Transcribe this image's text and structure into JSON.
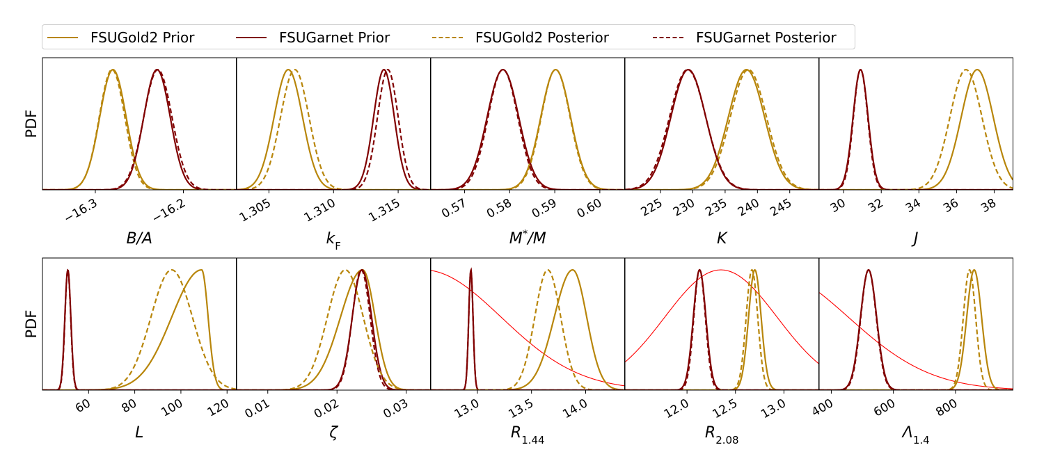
{
  "legend": {
    "items": [
      {
        "label": "FSUGold2 Prior",
        "color": "#b8860b",
        "style": "solid"
      },
      {
        "label": "FSUGarnet Prior",
        "color": "#800000",
        "style": "solid"
      },
      {
        "label": "FSUGold2 Posterior",
        "color": "#b8860b",
        "style": "dashed"
      },
      {
        "label": "FSUGarnet Posterior",
        "color": "#800000",
        "style": "dashed"
      }
    ]
  },
  "colors": {
    "gold": "#b8860b",
    "garnet": "#800000",
    "constraint": "#ff0000"
  },
  "chart_data": [
    {
      "type": "line",
      "xlabel": "B/A",
      "ylabel": "PDF",
      "xlim": [
        -16.36,
        -16.14
      ],
      "ticks": [
        {
          "v": -16.3,
          "label": "−16.3"
        },
        {
          "v": -16.2,
          "label": "−16.2"
        }
      ],
      "series": [
        {
          "name": "FSUGold2 Prior",
          "mu": -16.28,
          "sigma": 0.015
        },
        {
          "name": "FSUGarnet Prior",
          "mu": -16.23,
          "sigma": 0.015
        },
        {
          "name": "FSUGold2 Posterior",
          "mu": -16.281,
          "sigma": 0.0145
        },
        {
          "name": "FSUGarnet Posterior",
          "mu": -16.229,
          "sigma": 0.016
        }
      ]
    },
    {
      "type": "line",
      "xlabel": "k_F",
      "ylabel": "",
      "xlim": [
        1.3025,
        1.3175
      ],
      "ticks": [
        {
          "v": 1.305,
          "label": "1.305"
        },
        {
          "v": 1.31,
          "label": "1.310"
        },
        {
          "v": 1.315,
          "label": "1.315"
        }
      ],
      "series": [
        {
          "name": "FSUGold2 Prior",
          "mu": 1.3065,
          "sigma": 0.0011
        },
        {
          "name": "FSUGarnet Prior",
          "mu": 1.3139,
          "sigma": 0.0008
        },
        {
          "name": "FSUGold2 Posterior",
          "mu": 1.307,
          "sigma": 0.0011
        },
        {
          "name": "FSUGarnet Posterior",
          "mu": 1.3142,
          "sigma": 0.0008
        }
      ]
    },
    {
      "type": "line",
      "xlabel": "M*/M",
      "ylabel": "",
      "xlim": [
        0.5625,
        0.6055
      ],
      "ticks": [
        {
          "v": 0.57,
          "label": "0.57"
        },
        {
          "v": 0.58,
          "label": "0.58"
        },
        {
          "v": 0.59,
          "label": "0.59"
        },
        {
          "v": 0.6,
          "label": "0.60"
        }
      ],
      "series": [
        {
          "name": "FSUGold2 Prior",
          "mu": 0.5902,
          "sigma": 0.0033
        },
        {
          "name": "FSUGarnet Prior",
          "mu": 0.5785,
          "sigma": 0.0035
        },
        {
          "name": "FSUGold2 Posterior",
          "mu": 0.5902,
          "sigma": 0.0032
        },
        {
          "name": "FSUGarnet Posterior",
          "mu": 0.5785,
          "sigma": 0.0033
        }
      ]
    },
    {
      "type": "line",
      "xlabel": "K",
      "ylabel": "",
      "xlim": [
        219.5,
        249.5
      ],
      "ticks": [
        {
          "v": 225,
          "label": "225"
        },
        {
          "v": 230,
          "label": "230"
        },
        {
          "v": 235,
          "label": "235"
        },
        {
          "v": 240,
          "label": "240"
        },
        {
          "v": 245,
          "label": "245"
        }
      ],
      "series": [
        {
          "name": "FSUGold2 Prior",
          "mu": 238.3,
          "sigma": 2.8
        },
        {
          "name": "FSUGarnet Prior",
          "mu": 229.3,
          "sigma": 2.7
        },
        {
          "name": "FSUGold2 Posterior",
          "mu": 238.6,
          "sigma": 2.8
        },
        {
          "name": "FSUGarnet Posterior",
          "mu": 229.2,
          "sigma": 2.8
        }
      ]
    },
    {
      "type": "line",
      "xlabel": "J",
      "ylabel": "",
      "xlim": [
        28.7,
        39.0
      ],
      "ticks": [
        {
          "v": 30,
          "label": "30"
        },
        {
          "v": 32,
          "label": "32"
        },
        {
          "v": 34,
          "label": "34"
        },
        {
          "v": 36,
          "label": "36"
        },
        {
          "v": 38,
          "label": "38"
        }
      ],
      "series": [
        {
          "name": "FSUGold2 Prior",
          "mu": 37.1,
          "sigma": 0.85
        },
        {
          "name": "FSUGarnet Prior",
          "mu": 30.9,
          "sigma": 0.4
        },
        {
          "name": "FSUGold2 Posterior",
          "mu": 36.5,
          "sigma": 0.85
        },
        {
          "name": "FSUGarnet Posterior",
          "mu": 30.9,
          "sigma": 0.38
        }
      ]
    },
    {
      "type": "line",
      "xlabel": "L",
      "ylabel": "PDF",
      "xlim": [
        40.0,
        124.0
      ],
      "ticks": [
        {
          "v": 60,
          "label": "60"
        },
        {
          "v": 80,
          "label": "80"
        },
        {
          "v": 100,
          "label": "100"
        },
        {
          "v": 120,
          "label": "120"
        }
      ],
      "series": [
        {
          "name": "FSUGold2 Prior",
          "mu": 109.0,
          "sigma": 2.8,
          "sigmaLeft": 13.0
        },
        {
          "name": "FSUGarnet Prior",
          "mu": 51.0,
          "sigma": 1.3
        },
        {
          "name": "FSUGold2 Posterior",
          "mu": 96.0,
          "sigma": 9.0
        },
        {
          "name": "FSUGarnet Posterior",
          "mu": 51.0,
          "sigma": 1.25
        }
      ]
    },
    {
      "type": "line",
      "xlabel": "ζ",
      "ylabel": "",
      "xlim": [
        0.0055,
        0.0335
      ],
      "ticks": [
        {
          "v": 0.01,
          "label": "0.01"
        },
        {
          "v": 0.02,
          "label": "0.02"
        },
        {
          "v": 0.03,
          "label": "0.03"
        }
      ],
      "series": [
        {
          "name": "FSUGold2 Prior",
          "mu": 0.0237,
          "sigma": 0.0018,
          "sigmaLeft": 0.0032
        },
        {
          "name": "FSUGarnet Prior",
          "mu": 0.0236,
          "sigma": 0.0014
        },
        {
          "name": "FSUGold2 Posterior",
          "mu": 0.0212,
          "sigma": 0.0026
        },
        {
          "name": "FSUGarnet Posterior",
          "mu": 0.0235,
          "sigma": 0.0013
        }
      ]
    },
    {
      "type": "line",
      "xlabel": "R_1.44",
      "ylabel": "",
      "xlim": [
        12.57,
        14.36
      ],
      "ticks": [
        {
          "v": 13.0,
          "label": "13.0"
        },
        {
          "v": 13.5,
          "label": "13.5"
        },
        {
          "v": 14.0,
          "label": "14.0"
        }
      ],
      "constraint": {
        "mu": 12.5,
        "sigma": 0.72
      },
      "series": [
        {
          "name": "FSUGold2 Prior",
          "mu": 13.88,
          "sigma": 0.13,
          "sigmaLeft": 0.17
        },
        {
          "name": "FSUGarnet Prior",
          "mu": 12.94,
          "sigma": 0.02
        },
        {
          "name": "FSUGold2 Posterior",
          "mu": 13.65,
          "sigma": 0.12
        },
        {
          "name": "FSUGarnet Posterior",
          "mu": 12.94,
          "sigma": 0.02
        }
      ]
    },
    {
      "type": "line",
      "xlabel": "R_2.08",
      "ylabel": "",
      "xlim": [
        11.36,
        13.36
      ],
      "ticks": [
        {
          "v": 12.0,
          "label": "12.0"
        },
        {
          "v": 12.5,
          "label": "12.5"
        },
        {
          "v": 13.0,
          "label": "13.0"
        }
      ],
      "constraint": {
        "mu": 12.35,
        "sigma": 0.58
      },
      "series": [
        {
          "name": "FSUGold2 Prior",
          "mu": 12.7,
          "sigma": 0.065
        },
        {
          "name": "FSUGarnet Prior",
          "mu": 12.13,
          "sigma": 0.065
        },
        {
          "name": "FSUGold2 Posterior",
          "mu": 12.67,
          "sigma": 0.06
        },
        {
          "name": "FSUGarnet Posterior",
          "mu": 12.13,
          "sigma": 0.06
        }
      ]
    },
    {
      "type": "line",
      "xlabel": "Λ_1.4",
      "ylabel": "",
      "xlim": [
        361.0,
        985.0
      ],
      "ticks": [
        {
          "v": 400,
          "label": "400"
        },
        {
          "v": 600,
          "label": "600"
        },
        {
          "v": 800,
          "label": "800"
        }
      ],
      "constraint": {
        "mu": 190,
        "sigma": 265
      },
      "series": [
        {
          "name": "FSUGold2 Prior",
          "mu": 860,
          "sigma": 24
        },
        {
          "name": "FSUGarnet Prior",
          "mu": 520,
          "sigma": 26
        },
        {
          "name": "FSUGold2 Posterior",
          "mu": 845,
          "sigma": 20
        },
        {
          "name": "FSUGarnet Posterior",
          "mu": 520,
          "sigma": 25
        }
      ]
    }
  ]
}
